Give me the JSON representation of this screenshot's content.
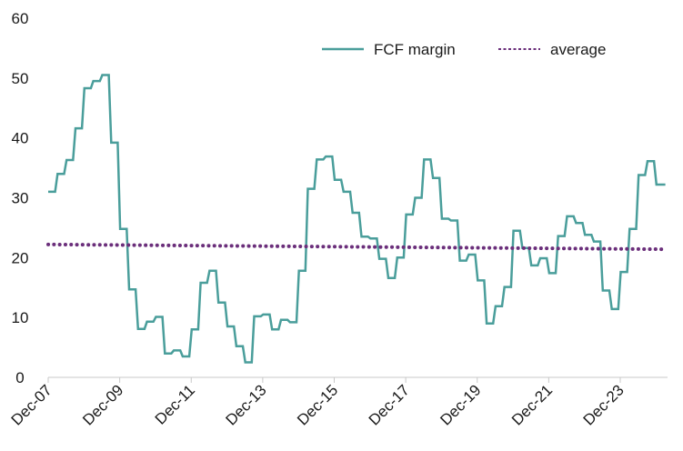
{
  "chart_data": {
    "type": "line",
    "title": "",
    "xlabel": "",
    "ylabel": "",
    "ylim": [
      0,
      60
    ],
    "yticks": [
      0,
      10,
      20,
      30,
      40,
      50,
      60
    ],
    "xlim": [
      2007.917,
      2024.67
    ],
    "xticks": [
      {
        "label": "Dec-07",
        "x": 2007.917
      },
      {
        "label": "Dec-09",
        "x": 2009.917
      },
      {
        "label": "Dec-11",
        "x": 2011.917
      },
      {
        "label": "Dec-13",
        "x": 2013.917
      },
      {
        "label": "Dec-15",
        "x": 2015.917
      },
      {
        "label": "Dec-17",
        "x": 2017.917
      },
      {
        "label": "Dec-19",
        "x": 2019.917
      },
      {
        "label": "Dec-21",
        "x": 2021.917
      },
      {
        "label": "Dec-23",
        "x": 2023.917
      }
    ],
    "grid": false,
    "legend_position": "top-right",
    "series": [
      {
        "name": "FCF margin",
        "color": "#4a9e9b",
        "style": "solid-step",
        "values": [
          [
            2007.917,
            31.0
          ],
          [
            2008.167,
            34.0
          ],
          [
            2008.417,
            36.3
          ],
          [
            2008.667,
            41.6
          ],
          [
            2008.917,
            48.3
          ],
          [
            2009.167,
            49.5
          ],
          [
            2009.417,
            50.5
          ],
          [
            2009.667,
            39.2
          ],
          [
            2009.917,
            24.8
          ],
          [
            2010.167,
            14.7
          ],
          [
            2010.417,
            8.1
          ],
          [
            2010.667,
            9.3
          ],
          [
            2010.917,
            10.1
          ],
          [
            2011.167,
            4.0
          ],
          [
            2011.417,
            4.5
          ],
          [
            2011.667,
            3.5
          ],
          [
            2011.917,
            8.0
          ],
          [
            2012.167,
            15.8
          ],
          [
            2012.417,
            17.8
          ],
          [
            2012.667,
            12.5
          ],
          [
            2012.917,
            8.5
          ],
          [
            2013.167,
            5.2
          ],
          [
            2013.417,
            2.5
          ],
          [
            2013.667,
            10.2
          ],
          [
            2013.917,
            10.5
          ],
          [
            2014.167,
            8.0
          ],
          [
            2014.417,
            9.6
          ],
          [
            2014.667,
            9.2
          ],
          [
            2014.917,
            17.8
          ],
          [
            2015.167,
            31.5
          ],
          [
            2015.417,
            36.4
          ],
          [
            2015.667,
            36.9
          ],
          [
            2015.917,
            33.0
          ],
          [
            2016.167,
            31.0
          ],
          [
            2016.417,
            27.5
          ],
          [
            2016.667,
            23.5
          ],
          [
            2016.917,
            23.2
          ],
          [
            2017.167,
            19.8
          ],
          [
            2017.417,
            16.6
          ],
          [
            2017.667,
            20.0
          ],
          [
            2017.917,
            27.2
          ],
          [
            2018.167,
            30.0
          ],
          [
            2018.417,
            36.4
          ],
          [
            2018.667,
            33.3
          ],
          [
            2018.917,
            26.5
          ],
          [
            2019.167,
            26.2
          ],
          [
            2019.417,
            19.5
          ],
          [
            2019.667,
            20.5
          ],
          [
            2019.917,
            16.2
          ],
          [
            2020.167,
            9.0
          ],
          [
            2020.417,
            11.9
          ],
          [
            2020.667,
            15.1
          ],
          [
            2020.917,
            24.5
          ],
          [
            2021.167,
            21.6
          ],
          [
            2021.417,
            18.7
          ],
          [
            2021.667,
            19.9
          ],
          [
            2021.917,
            17.4
          ],
          [
            2022.167,
            23.6
          ],
          [
            2022.417,
            26.9
          ],
          [
            2022.667,
            25.8
          ],
          [
            2022.917,
            23.8
          ],
          [
            2023.167,
            22.7
          ],
          [
            2023.417,
            14.5
          ],
          [
            2023.667,
            11.4
          ],
          [
            2023.917,
            17.6
          ],
          [
            2024.167,
            24.8
          ],
          [
            2024.417,
            33.8
          ],
          [
            2024.667,
            36.1
          ],
          [
            2024.917,
            32.2
          ],
          [
            2025.167,
            32.2
          ]
        ]
      },
      {
        "name": "average",
        "color": "#6b2f7b",
        "style": "dotted",
        "values": [
          [
            2007.917,
            22.2
          ],
          [
            2025.167,
            21.4
          ]
        ]
      }
    ]
  }
}
